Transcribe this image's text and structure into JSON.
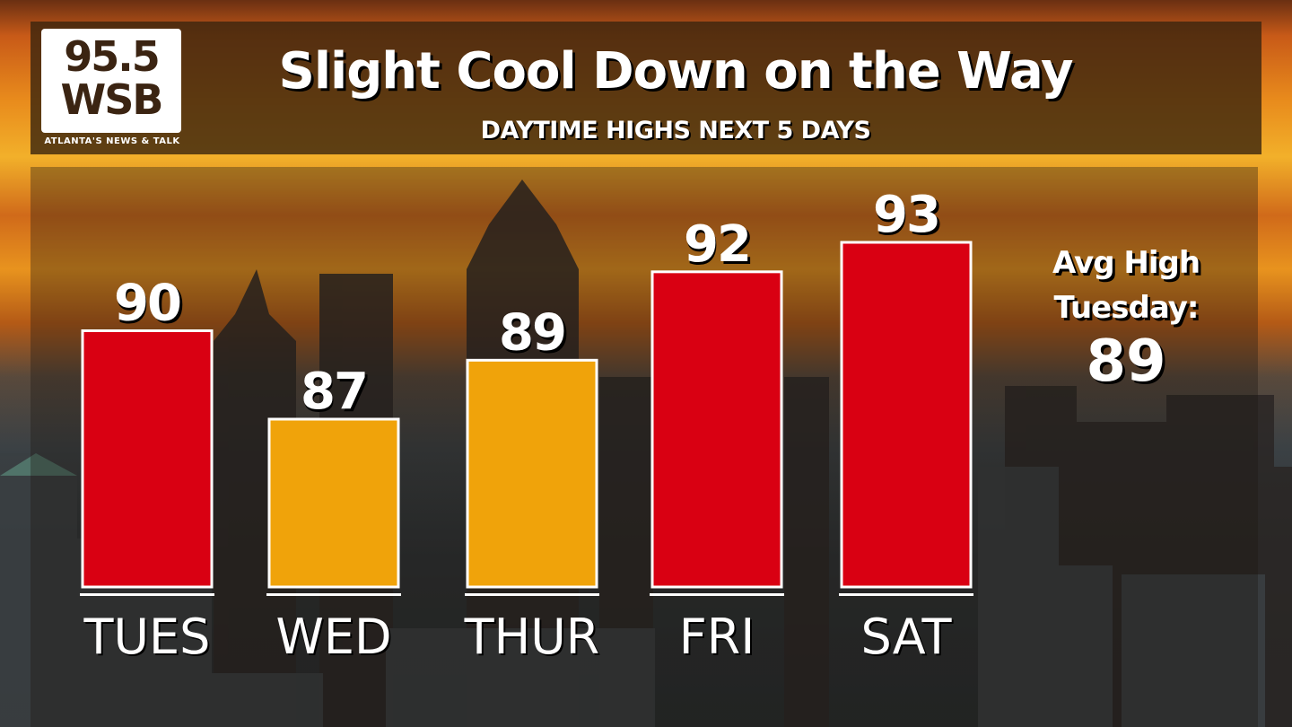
{
  "header": {
    "title": "Slight Cool Down on the Way",
    "subtitle": "DAYTIME HIGHS NEXT 5 DAYS"
  },
  "logo": {
    "line1": "95.5",
    "line2": "WSB",
    "tagline": "ATLANTA'S NEWS & TALK"
  },
  "side_note": {
    "line1": "Avg High",
    "line2": "Tuesday:",
    "value": "89"
  },
  "colors": {
    "above_average": "#d90012",
    "below_or_at_average": "#f0a30a",
    "bar_border": "#ffffff",
    "text": "#ffffff"
  },
  "chart_data": {
    "type": "bar",
    "title": "Slight Cool Down on the Way",
    "subtitle": "DAYTIME HIGHS NEXT 5 DAYS",
    "categories": [
      "TUES",
      "WED",
      "THUR",
      "FRI",
      "SAT"
    ],
    "values": [
      90,
      87,
      89,
      92,
      93
    ],
    "value_labels": [
      "90",
      "87",
      "89",
      "92",
      "93"
    ],
    "bar_colors": [
      "#d90012",
      "#f0a30a",
      "#f0a30a",
      "#d90012",
      "#d90012"
    ],
    "xlabel": "",
    "ylabel": "",
    "grid": false,
    "legend": "none"
  }
}
